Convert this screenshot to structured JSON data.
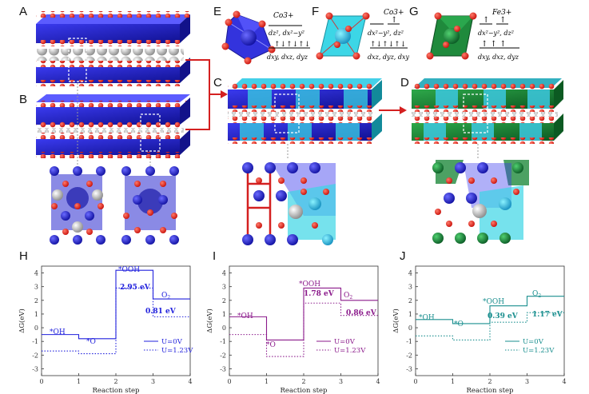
{
  "panel_labels": [
    "A",
    "B",
    "C",
    "D",
    "E",
    "F",
    "G",
    "H",
    "I",
    "J"
  ],
  "ion_labels": {
    "E": {
      "ion": "Co3+",
      "eg": "dz², dx²−y²",
      "t2g": "dxy, dxz, dyz"
    },
    "F": {
      "ion": "Co3+",
      "eg": "dx²−y², dz²",
      "t2g": "dxz, dyz, dxy"
    },
    "G": {
      "ion": "Fe3+",
      "eg": "dx²−y², dz²",
      "t2g": "dxy, dxz, dyz"
    }
  },
  "colors": {
    "H": "#2222dd",
    "I": "#8b1a8b",
    "J": "#1a8f8f"
  },
  "chart_data": [
    {
      "panel": "H",
      "type": "line",
      "xlabel": "Reaction step",
      "ylabel": "ΔG(eV)",
      "xlim": [
        0,
        4
      ],
      "ylim": [
        -3.5,
        4.5
      ],
      "xticks": [
        0,
        1,
        2,
        3,
        4
      ],
      "yticks": [
        -3,
        -2,
        -1,
        0,
        1,
        2,
        3,
        4
      ],
      "step_labels": [
        "*OH",
        "*O",
        "*OOH",
        "O2"
      ],
      "annotations": [
        "2.95 eV",
        "0.81 eV"
      ],
      "series": [
        {
          "name": "U=0V",
          "values": [
            -0.5,
            -0.8,
            4.2,
            2.1
          ]
        },
        {
          "name": "U=1.23V",
          "values": [
            -1.7,
            -1.9,
            2.9,
            0.8
          ]
        }
      ]
    },
    {
      "panel": "I",
      "type": "line",
      "xlabel": "Reaction step",
      "ylabel": "ΔG(eV)",
      "xlim": [
        0,
        4
      ],
      "ylim": [
        -3.5,
        4.5
      ],
      "xticks": [
        0,
        1,
        2,
        3,
        4
      ],
      "yticks": [
        -3,
        -2,
        -1,
        0,
        1,
        2,
        3,
        4
      ],
      "step_labels": [
        "*OH",
        "*O",
        "*OOH",
        "O2"
      ],
      "annotations": [
        "1.78 eV",
        "0.86 eV"
      ],
      "series": [
        {
          "name": "U=0V",
          "values": [
            0.8,
            -0.9,
            2.9,
            2.0
          ]
        },
        {
          "name": "U=1.23V",
          "values": [
            -0.5,
            -2.1,
            1.8,
            0.9
          ]
        }
      ]
    },
    {
      "panel": "J",
      "type": "line",
      "xlabel": "Reaction step",
      "ylabel": "ΔG(eV)",
      "xlim": [
        0,
        4
      ],
      "ylim": [
        -3.5,
        4.5
      ],
      "xticks": [
        0,
        1,
        2,
        3,
        4
      ],
      "yticks": [
        -3,
        -2,
        -1,
        0,
        1,
        2,
        3,
        4
      ],
      "step_labels": [
        "*OH",
        "*O",
        "*OOH",
        "O2"
      ],
      "annotations": [
        "0.39 eV",
        "1.17 eV"
      ],
      "series": [
        {
          "name": "U=0V",
          "values": [
            0.6,
            0.3,
            1.6,
            2.3
          ]
        },
        {
          "name": "U=1.23V",
          "values": [
            -0.6,
            -0.9,
            0.4,
            1.1
          ]
        }
      ]
    }
  ]
}
